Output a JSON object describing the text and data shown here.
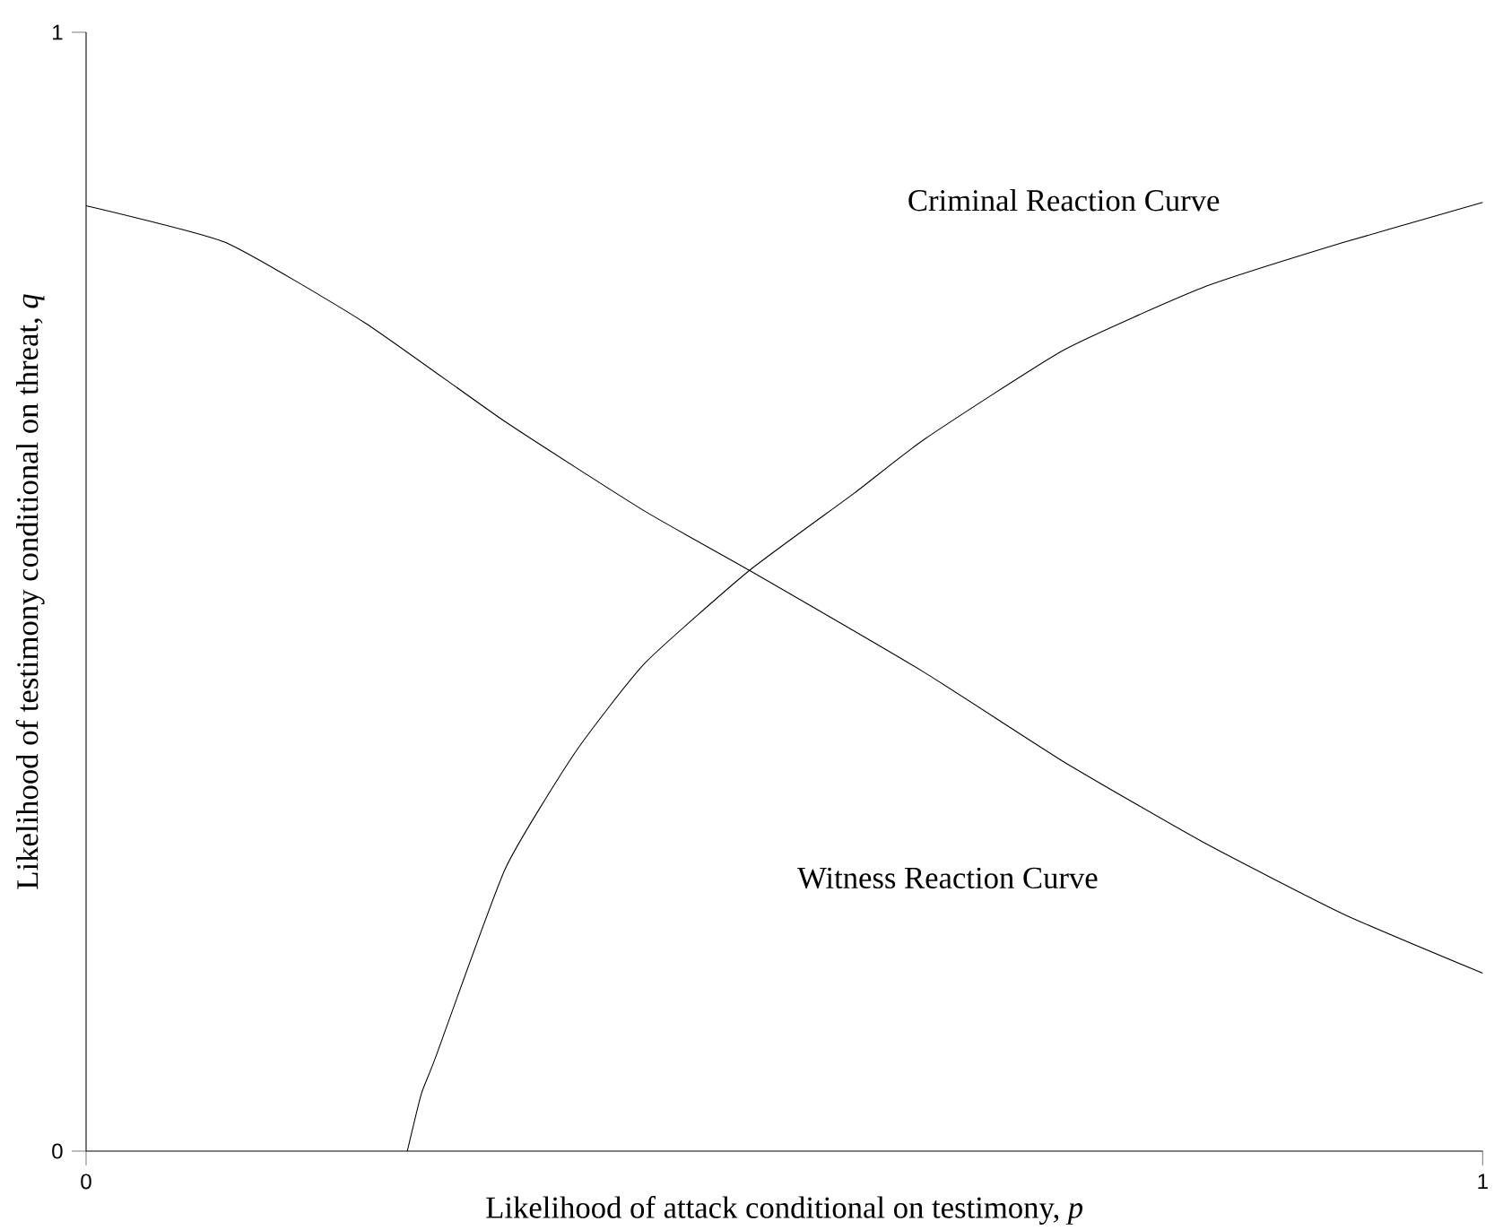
{
  "chart_data": {
    "type": "line",
    "xlabel": "Likelihood of attack conditional on testimony, *p*",
    "ylabel": "Likelihood of testimony conditional on threat, *q*",
    "xlim": [
      0,
      1
    ],
    "ylim": [
      0,
      1
    ],
    "xticks": [
      0,
      1
    ],
    "yticks": [
      0,
      1
    ],
    "grid": false,
    "legend": false,
    "marker": "none",
    "line_style": "solid",
    "series": [
      {
        "name": "Criminal Reaction Curve",
        "color": "#000000",
        "x": [
          0.23,
          0.24,
          0.25,
          0.3,
          0.35,
          0.4,
          0.475,
          0.55,
          0.6,
          0.7,
          0.8,
          0.9,
          1.0
        ],
        "values": [
          0,
          0.051,
          0.083,
          0.252,
          0.356,
          0.436,
          0.519,
          0.588,
          0.636,
          0.716,
          0.772,
          0.812,
          0.848
        ]
      },
      {
        "name": "Witness Reaction Curve",
        "color": "#000000",
        "x": [
          0,
          0.1,
          0.2,
          0.3,
          0.4,
          0.475,
          0.6,
          0.7,
          0.8,
          0.9,
          1.0
        ],
        "values": [
          0.845,
          0.812,
          0.74,
          0.652,
          0.572,
          0.519,
          0.428,
          0.348,
          0.276,
          0.212,
          0.159
        ]
      }
    ]
  }
}
